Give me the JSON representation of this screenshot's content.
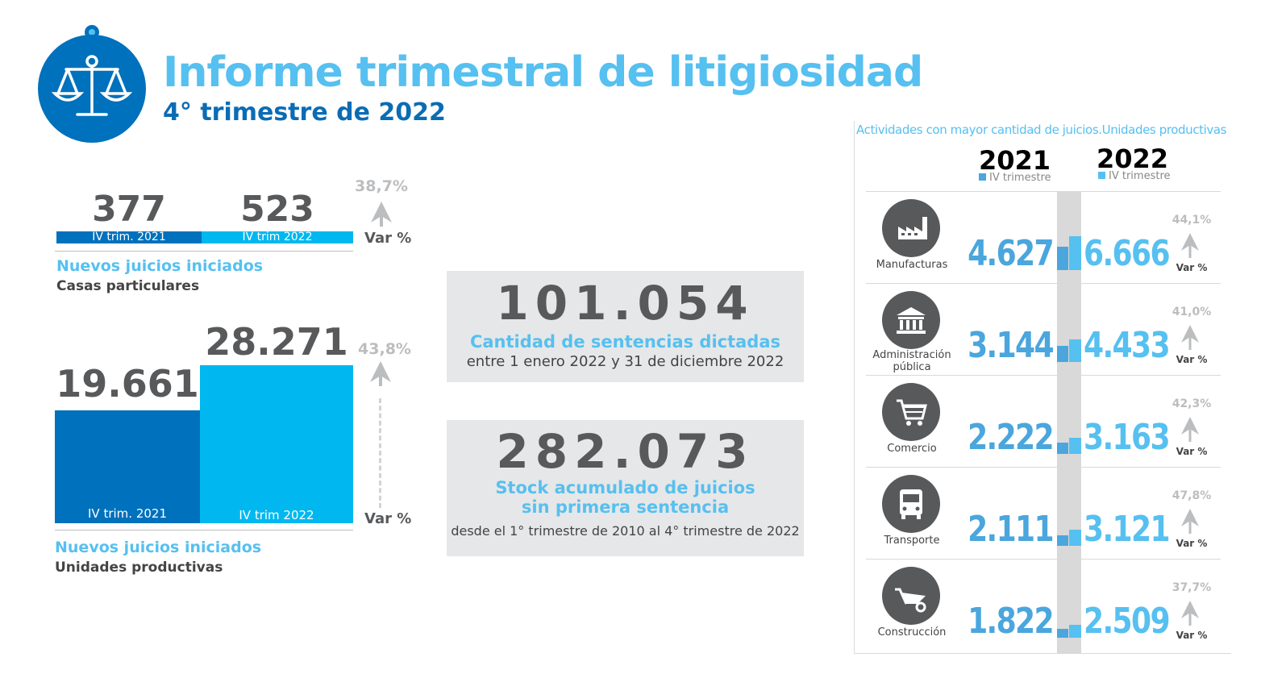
{
  "header": {
    "title": "Informe trimestral de litigiosidad",
    "subtitle": "4° trimestre de 2022"
  },
  "colors": {
    "dark_blue": "#0071bc",
    "light_blue": "#00b8ef",
    "title_blue": "#56c0f0",
    "gray_text": "#58595b",
    "arrow_gray": "#bbbdbf"
  },
  "casas": {
    "value_2021": "377",
    "value_2022": "523",
    "label_2021": "IV trim. 2021",
    "label_2022": "IV trim 2022",
    "pct": "38,7%",
    "var": "Var %",
    "title": "Nuevos juicios iniciados",
    "sub": "Casas particulares"
  },
  "unidades": {
    "value_2021": "19.661",
    "value_2022": "28.271",
    "label_2021": "IV trim. 2021",
    "label_2022": "IV trim 2022",
    "pct": "43,8%",
    "var": "Var %",
    "title": "Nuevos juicios iniciados",
    "sub": "Unidades productivas"
  },
  "sentencias": {
    "value": "101.054",
    "title": "Cantidad de sentencias dictadas",
    "sub": "entre 1 enero 2022 y 31 de diciembre 2022"
  },
  "stock": {
    "value": "282.073",
    "title_line1": "Stock acumulado de juicios",
    "title_line2": "sin primera sentencia",
    "sub": "desde el 1° trimestre de 2010 al 4° trimestre de 2022"
  },
  "right_panel": {
    "title": "Actividades con mayor cantidad de juicios.Unidades productivas",
    "year_2021": "2021",
    "year_2022": "2022",
    "trim_2021": "IV trimestre",
    "trim_2022": "IV trimestre"
  },
  "chart_data": [
    {
      "type": "bar",
      "title": "Nuevos juicios iniciados",
      "subtitle": "Casas particulares",
      "categories": [
        "IV trim. 2021",
        "IV trim 2022"
      ],
      "values": [
        377,
        523
      ],
      "variation_pct": 38.7
    },
    {
      "type": "bar",
      "title": "Nuevos juicios iniciados",
      "subtitle": "Unidades productivas",
      "categories": [
        "IV trim. 2021",
        "IV trim 2022"
      ],
      "values": [
        19661,
        28271
      ],
      "variation_pct": 43.8
    },
    {
      "type": "bar",
      "title": "Actividades con mayor cantidad de juicios.Unidades productivas",
      "categories": [
        "Manufacturas",
        "Administración pública",
        "Comercio",
        "Transporte",
        "Construcción"
      ],
      "series": [
        {
          "name": "2021",
          "values": [
            4627,
            3144,
            2222,
            2111,
            1822
          ]
        },
        {
          "name": "2022",
          "values": [
            6666,
            4433,
            3163,
            3121,
            2509
          ]
        }
      ],
      "variation_pct": [
        44.1,
        41.0,
        42.3,
        47.8,
        37.7
      ],
      "labels": {
        "activities": [
          {
            "name_line1": "Manufacturas",
            "name_line2": "",
            "v21": "4.627",
            "v22": "6.666",
            "pct": "44,1%",
            "var": "Var %",
            "icon": "factory-icon"
          },
          {
            "name_line1": "Administración",
            "name_line2": "pública",
            "v21": "3.144",
            "v22": "4.433",
            "pct": "41,0%",
            "var": "Var %",
            "icon": "government-building-icon"
          },
          {
            "name_line1": "Comercio",
            "name_line2": "",
            "v21": "2.222",
            "v22": "3.163",
            "pct": "42,3%",
            "var": "Var %",
            "icon": "shopping-cart-icon"
          },
          {
            "name_line1": "Transporte",
            "name_line2": "",
            "v21": "2.111",
            "v22": "3.121",
            "pct": "47,8%",
            "var": "Var %",
            "icon": "bus-icon"
          },
          {
            "name_line1": "Construcción",
            "name_line2": "",
            "v21": "1.822",
            "v22": "2.509",
            "pct": "37,7%",
            "var": "Var %",
            "icon": "wheelbarrow-icon"
          }
        ]
      }
    }
  ]
}
